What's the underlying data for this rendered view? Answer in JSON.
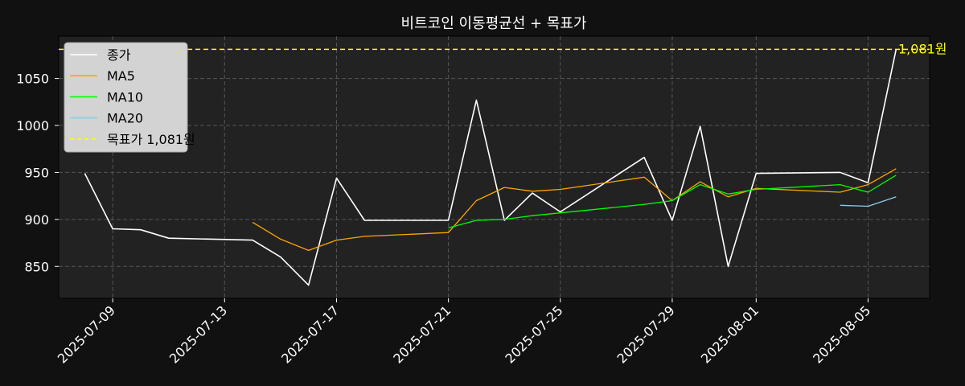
{
  "chart_data": {
    "type": "line",
    "title": "비트코인 이동평균선 + 목표가",
    "xlabel": "",
    "ylabel": "",
    "ylim": [
      816,
      1095
    ],
    "xlim": [
      "2025-07-07",
      "2025-08-07"
    ],
    "grid": true,
    "legend_position": "top-left",
    "x_ticks": [
      "2025-07-09",
      "2025-07-13",
      "2025-07-17",
      "2025-07-21",
      "2025-07-25",
      "2025-07-29",
      "2025-08-01",
      "2025-08-05"
    ],
    "y_ticks": [
      850,
      900,
      950,
      1000,
      1050
    ],
    "series": [
      {
        "name": "종가",
        "color": "#ffffff",
        "points": [
          [
            "2025-07-08",
            949
          ],
          [
            "2025-07-09",
            890
          ],
          [
            "2025-07-10",
            889
          ],
          [
            "2025-07-11",
            880
          ],
          [
            "2025-07-14",
            878
          ],
          [
            "2025-07-15",
            860
          ],
          [
            "2025-07-16",
            830
          ],
          [
            "2025-07-17",
            944
          ],
          [
            "2025-07-18",
            899
          ],
          [
            "2025-07-21",
            899
          ],
          [
            "2025-07-22",
            1027
          ],
          [
            "2025-07-23",
            899
          ],
          [
            "2025-07-24",
            928
          ],
          [
            "2025-07-25",
            908
          ],
          [
            "2025-07-28",
            966
          ],
          [
            "2025-07-29",
            899
          ],
          [
            "2025-07-30",
            999
          ],
          [
            "2025-07-31",
            850
          ],
          [
            "2025-08-01",
            949
          ],
          [
            "2025-08-04",
            950
          ],
          [
            "2025-08-05",
            939
          ],
          [
            "2025-08-06",
            1081
          ]
        ]
      },
      {
        "name": "MA5",
        "color": "#ffa500",
        "points": [
          [
            "2025-07-14",
            897
          ],
          [
            "2025-07-15",
            879
          ],
          [
            "2025-07-16",
            867
          ],
          [
            "2025-07-17",
            878
          ],
          [
            "2025-07-18",
            882
          ],
          [
            "2025-07-21",
            886
          ],
          [
            "2025-07-22",
            920
          ],
          [
            "2025-07-23",
            934
          ],
          [
            "2025-07-24",
            930
          ],
          [
            "2025-07-25",
            932
          ],
          [
            "2025-07-28",
            945
          ],
          [
            "2025-07-29",
            920
          ],
          [
            "2025-07-30",
            940
          ],
          [
            "2025-07-31",
            924
          ],
          [
            "2025-08-01",
            933
          ],
          [
            "2025-08-04",
            929
          ],
          [
            "2025-08-05",
            937
          ],
          [
            "2025-08-06",
            954
          ]
        ]
      },
      {
        "name": "MA10",
        "color": "#00ff00",
        "points": [
          [
            "2025-07-21",
            891
          ],
          [
            "2025-07-22",
            899
          ],
          [
            "2025-07-23",
            900
          ],
          [
            "2025-07-24",
            904
          ],
          [
            "2025-07-25",
            907
          ],
          [
            "2025-07-28",
            916
          ],
          [
            "2025-07-29",
            920
          ],
          [
            "2025-07-30",
            937
          ],
          [
            "2025-07-31",
            927
          ],
          [
            "2025-08-01",
            932
          ],
          [
            "2025-08-04",
            937
          ],
          [
            "2025-08-05",
            929
          ],
          [
            "2025-08-06",
            947
          ]
        ]
      },
      {
        "name": "MA20",
        "color": "#87ceeb",
        "points": [
          [
            "2025-08-04",
            915
          ],
          [
            "2025-08-05",
            914
          ],
          [
            "2025-08-06",
            924
          ]
        ]
      }
    ],
    "target_line": {
      "legend_label": "목표가 1,081원",
      "annotation": "1,081원",
      "value": 1081,
      "color": "#ffff00",
      "style": "dashed"
    }
  }
}
